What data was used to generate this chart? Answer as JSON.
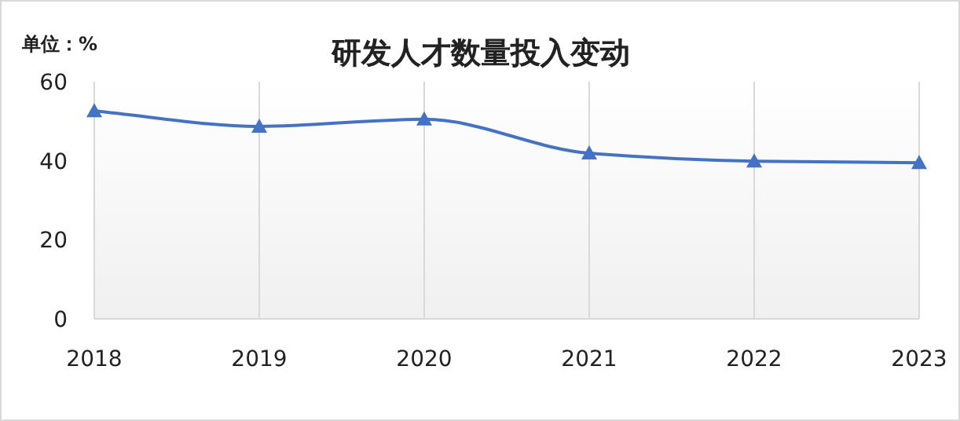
{
  "chart_data": {
    "type": "line",
    "title": "研发人才数量投入变动",
    "ylabel": "单位：%",
    "categories": [
      "2018",
      "2019",
      "2020",
      "2021",
      "2022",
      "2023"
    ],
    "series": [
      {
        "color": "#4472c4",
        "values": [
          52.6,
          48.7,
          50.5,
          41.9,
          39.9,
          39.5
        ]
      }
    ],
    "ylim": [
      0,
      60
    ],
    "yticks": [
      0,
      20,
      40,
      60
    ],
    "grid": "x",
    "marker": "triangle",
    "line_style": "solid"
  }
}
